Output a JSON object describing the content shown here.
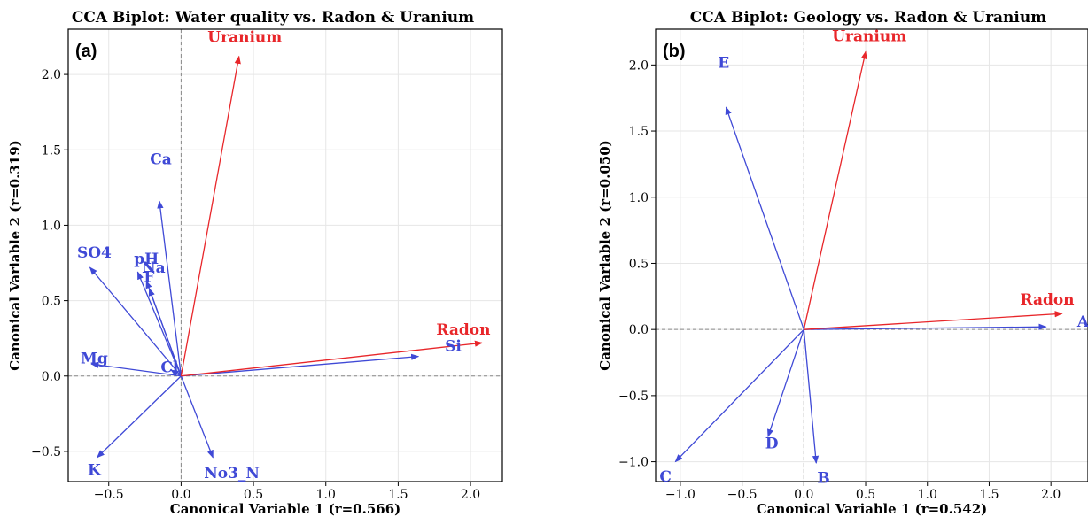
{
  "chart_data": [
    {
      "type": "biplot",
      "title": "CCA Biplot: Water quality vs. Radon & Uranium",
      "panel_label": "(a)",
      "xlabel": "Canonical Variable 1 (r=0.566)",
      "ylabel": "Canonical Variable 2 (r=0.319)",
      "xlim": [
        -0.78,
        2.22
      ],
      "ylim": [
        -0.7,
        2.3
      ],
      "xticks": [
        "−0.5",
        "0.0",
        "0.5",
        "1.0",
        "1.5",
        "2.0"
      ],
      "xtick_values": [
        -0.5,
        0,
        0.5,
        1.0,
        1.5,
        2.0
      ],
      "yticks": [
        "−0.5",
        "0.0",
        "0.5",
        "1.0",
        "1.5",
        "2.0"
      ],
      "ytick_values": [
        -0.5,
        0,
        0.5,
        1.0,
        1.5,
        2.0
      ],
      "grid": true,
      "response_color": "#e8262a",
      "predictor_color": "#3f49d6",
      "response_vectors": [
        {
          "label": "Uranium",
          "x": 0.4,
          "y": 2.12,
          "lx": 0.44,
          "ly": 2.25
        },
        {
          "label": "Radon",
          "x": 2.08,
          "y": 0.22,
          "lx": 1.95,
          "ly": 0.31
        }
      ],
      "predictor_vectors": [
        {
          "label": "Ca",
          "x": -0.15,
          "y": 1.16,
          "lx": -0.14,
          "ly": 1.44
        },
        {
          "label": "SO4",
          "x": -0.63,
          "y": 0.72,
          "lx": -0.6,
          "ly": 0.82
        },
        {
          "label": "pH",
          "x": -0.3,
          "y": 0.69,
          "lx": -0.24,
          "ly": 0.78
        },
        {
          "label": "Na",
          "x": -0.24,
          "y": 0.63,
          "lx": -0.19,
          "ly": 0.72
        },
        {
          "label": "F",
          "x": -0.22,
          "y": 0.58,
          "lx": -0.22,
          "ly": 0.66
        },
        {
          "label": "Mg",
          "x": -0.62,
          "y": 0.08,
          "lx": -0.6,
          "ly": 0.12
        },
        {
          "label": "Cl",
          "x": -0.07,
          "y": 0.04,
          "lx": -0.08,
          "ly": 0.06
        },
        {
          "label": "Si",
          "x": 1.64,
          "y": 0.13,
          "lx": 1.88,
          "ly": 0.2
        },
        {
          "label": "K",
          "x": -0.58,
          "y": -0.54,
          "lx": -0.6,
          "ly": -0.62
        },
        {
          "label": "No3_N",
          "x": 0.22,
          "y": -0.54,
          "lx": 0.35,
          "ly": -0.64
        }
      ]
    },
    {
      "type": "biplot",
      "title": "CCA Biplot: Geology vs. Radon & Uranium",
      "panel_label": "(b)",
      "xlabel": "Canonical Variable 1 (r=0.542)",
      "ylabel": "Canonical Variable 2 (r=0.050)",
      "xlim": [
        -1.2,
        2.3
      ],
      "ylim": [
        -1.15,
        2.27
      ],
      "xticks": [
        "−1.0",
        "−0.5",
        "0.0",
        "0.5",
        "1.0",
        "1.5",
        "2.0"
      ],
      "xtick_values": [
        -1.0,
        -0.5,
        0,
        0.5,
        1.0,
        1.5,
        2.0
      ],
      "yticks": [
        "−1.0",
        "−0.5",
        "0.0",
        "0.5",
        "1.0",
        "1.5",
        "2.0"
      ],
      "ytick_values": [
        -1.0,
        -0.5,
        0,
        0.5,
        1.0,
        1.5,
        2.0
      ],
      "grid": true,
      "response_color": "#e8262a",
      "predictor_color": "#3f49d6",
      "response_vectors": [
        {
          "label": "Uranium",
          "x": 0.5,
          "y": 2.1,
          "lx": 0.53,
          "ly": 2.22
        },
        {
          "label": "Radon",
          "x": 2.09,
          "y": 0.12,
          "lx": 1.97,
          "ly": 0.23
        }
      ],
      "predictor_vectors": [
        {
          "label": "E",
          "x": -0.63,
          "y": 1.68,
          "lx": -0.65,
          "ly": 2.02
        },
        {
          "label": "A",
          "x": 1.96,
          "y": 0.02,
          "lx": 2.26,
          "ly": 0.06
        },
        {
          "label": "D",
          "x": -0.29,
          "y": -0.81,
          "lx": -0.26,
          "ly": -0.86
        },
        {
          "label": "B",
          "x": 0.1,
          "y": -1.01,
          "lx": 0.16,
          "ly": -1.12
        },
        {
          "label": "C",
          "x": -1.04,
          "y": -1.0,
          "lx": -1.12,
          "ly": -1.11
        }
      ]
    }
  ]
}
